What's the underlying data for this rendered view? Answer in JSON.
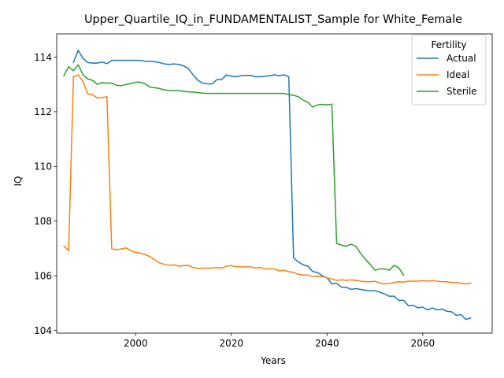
{
  "chart_data": {
    "type": "line",
    "title": "Upper_Quartile_IQ_in_FUNDAMENTALIST_Sample for White_Female",
    "xlabel": "Years",
    "ylabel": "IQ",
    "xlim": [
      1983.5,
      2074.5
    ],
    "ylim": [
      103.9,
      114.85
    ],
    "xticks": [
      2000,
      2020,
      2040,
      2060
    ],
    "yticks": [
      104,
      106,
      108,
      110,
      112,
      114
    ],
    "grid": false,
    "legend": {
      "title": "Fertility",
      "position": "upper right"
    },
    "series": [
      {
        "name": "Actual",
        "color": "#1f77b4",
        "x": [
          1987,
          1988,
          1989,
          1990,
          1991,
          1992,
          1993,
          1994,
          1995,
          1996,
          1997,
          1998,
          1999,
          2000,
          2001,
          2002,
          2003,
          2004,
          2005,
          2006,
          2007,
          2008,
          2009,
          2010,
          2011,
          2012,
          2013,
          2014,
          2015,
          2016,
          2017,
          2018,
          2019,
          2020,
          2021,
          2022,
          2023,
          2024,
          2025,
          2026,
          2027,
          2028,
          2029,
          2030,
          2031,
          2032,
          2033,
          2034,
          2035,
          2036,
          2037,
          2038,
          2039,
          2040,
          2041,
          2042,
          2043,
          2044,
          2045,
          2046,
          2047,
          2048,
          2049,
          2050,
          2051,
          2052,
          2053,
          2054,
          2055,
          2056,
          2057,
          2058,
          2059,
          2060,
          2061,
          2062,
          2063,
          2064,
          2065,
          2066,
          2067,
          2068,
          2069,
          2070
        ],
        "y": [
          113.8,
          114.25,
          113.95,
          113.8,
          113.78,
          113.78,
          113.82,
          113.76,
          113.88,
          113.88,
          113.88,
          113.88,
          113.88,
          113.88,
          113.88,
          113.85,
          113.85,
          113.83,
          113.8,
          113.75,
          113.73,
          113.75,
          113.73,
          113.68,
          113.58,
          113.35,
          113.15,
          113.05,
          113.02,
          113.02,
          113.18,
          113.18,
          113.35,
          113.3,
          113.28,
          113.32,
          113.33,
          113.33,
          113.28,
          113.28,
          113.3,
          113.32,
          113.35,
          113.32,
          113.35,
          113.28,
          106.65,
          106.5,
          106.4,
          106.35,
          106.15,
          106.12,
          106.0,
          105.92,
          105.7,
          105.72,
          105.58,
          105.58,
          105.5,
          105.53,
          105.5,
          105.47,
          105.45,
          105.45,
          105.4,
          105.33,
          105.25,
          105.25,
          105.1,
          105.1,
          104.9,
          104.92,
          104.82,
          104.85,
          104.75,
          104.82,
          104.75,
          104.78,
          104.7,
          104.68,
          104.55,
          104.58,
          104.4,
          104.45
        ]
      },
      {
        "name": "Ideal",
        "color": "#ff7f0e",
        "x": [
          1985,
          1986,
          1987,
          1988,
          1989,
          1990,
          1991,
          1992,
          1993,
          1994,
          1995,
          1996,
          1997,
          1998,
          1999,
          2000,
          2001,
          2002,
          2003,
          2004,
          2005,
          2006,
          2007,
          2008,
          2009,
          2010,
          2011,
          2012,
          2013,
          2014,
          2015,
          2016,
          2017,
          2018,
          2019,
          2020,
          2021,
          2022,
          2023,
          2024,
          2025,
          2026,
          2027,
          2028,
          2029,
          2030,
          2031,
          2032,
          2033,
          2034,
          2035,
          2036,
          2037,
          2038,
          2039,
          2040,
          2041,
          2042,
          2043,
          2044,
          2045,
          2046,
          2047,
          2048,
          2049,
          2050,
          2051,
          2052,
          2053,
          2054,
          2055,
          2056,
          2057,
          2058,
          2059,
          2060,
          2061,
          2062,
          2063,
          2064,
          2065,
          2066,
          2067,
          2068,
          2069,
          2070
        ],
        "y": [
          107.08,
          106.92,
          113.28,
          113.35,
          113.1,
          112.65,
          112.62,
          112.5,
          112.52,
          112.55,
          106.98,
          106.95,
          106.98,
          107.02,
          106.92,
          106.85,
          106.83,
          106.77,
          106.7,
          106.58,
          106.47,
          106.42,
          106.38,
          106.4,
          106.35,
          106.37,
          106.38,
          106.3,
          106.27,
          106.27,
          106.28,
          106.28,
          106.3,
          106.28,
          106.35,
          106.37,
          106.33,
          106.33,
          106.32,
          106.33,
          106.28,
          106.3,
          106.25,
          106.25,
          106.25,
          106.18,
          106.2,
          106.15,
          106.12,
          106.05,
          106.03,
          106.02,
          105.97,
          105.98,
          105.97,
          105.92,
          105.88,
          105.83,
          105.85,
          105.83,
          105.85,
          105.83,
          105.8,
          105.78,
          105.78,
          105.8,
          105.73,
          105.7,
          105.72,
          105.75,
          105.78,
          105.77,
          105.8,
          105.8,
          105.8,
          105.82,
          105.8,
          105.82,
          105.8,
          105.78,
          105.78,
          105.75,
          105.75,
          105.72,
          105.7,
          105.73
        ]
      },
      {
        "name": "Sterile",
        "color": "#2ca02c",
        "x": [
          1985,
          1986,
          1987,
          1988,
          1989,
          1990,
          1991,
          1992,
          1993,
          1994,
          1995,
          1996,
          1997,
          1998,
          1999,
          2000,
          2001,
          2002,
          2003,
          2004,
          2005,
          2006,
          2007,
          2008,
          2009,
          2010,
          2011,
          2012,
          2013,
          2014,
          2015,
          2016,
          2017,
          2018,
          2019,
          2020,
          2021,
          2022,
          2023,
          2024,
          2025,
          2026,
          2027,
          2028,
          2029,
          2030,
          2031,
          2032,
          2033,
          2034,
          2035,
          2036,
          2037,
          2038,
          2039,
          2040,
          2041,
          2042,
          2043,
          2044,
          2045,
          2046,
          2047,
          2048,
          2049,
          2050,
          2051,
          2052,
          2053,
          2054,
          2055,
          2056
        ],
        "y": [
          113.32,
          113.65,
          113.5,
          113.72,
          113.35,
          113.2,
          113.15,
          113.0,
          113.07,
          113.05,
          113.05,
          112.97,
          112.95,
          113.0,
          113.03,
          113.08,
          113.08,
          113.02,
          112.9,
          112.88,
          112.85,
          112.8,
          112.78,
          112.77,
          112.77,
          112.75,
          112.73,
          112.72,
          112.7,
          112.68,
          112.67,
          112.67,
          112.67,
          112.67,
          112.67,
          112.67,
          112.67,
          112.67,
          112.67,
          112.67,
          112.67,
          112.67,
          112.67,
          112.67,
          112.67,
          112.67,
          112.67,
          112.63,
          112.6,
          112.55,
          112.42,
          112.35,
          112.17,
          112.25,
          112.27,
          112.25,
          112.28,
          107.18,
          107.12,
          107.08,
          107.15,
          107.08,
          106.82,
          106.6,
          106.42,
          106.2,
          106.25,
          106.25,
          106.2,
          106.38,
          106.28,
          106.02
        ]
      }
    ]
  }
}
